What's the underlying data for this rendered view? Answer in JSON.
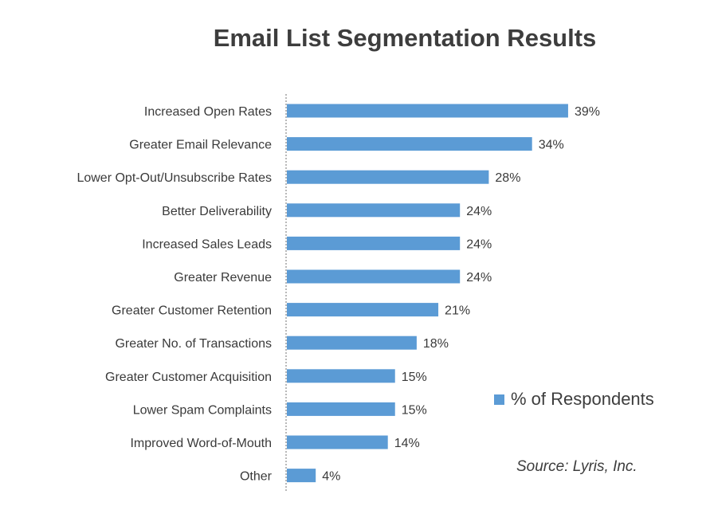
{
  "chart_data": {
    "type": "bar",
    "orientation": "horizontal",
    "title": "Email List Segmentation Results",
    "categories": [
      "Increased Open Rates",
      "Greater Email Relevance",
      "Lower Opt-Out/Unsubscribe Rates",
      "Better Deliverability",
      "Increased Sales Leads",
      "Greater Revenue",
      "Greater Customer Retention",
      "Greater No. of Transactions",
      "Greater Customer Acquisition",
      "Lower Spam Complaints",
      "Improved Word-of-Mouth",
      "Other"
    ],
    "series": [
      {
        "name": "% of Respondents",
        "values": [
          39,
          34,
          28,
          24,
          24,
          24,
          21,
          18,
          15,
          15,
          14,
          4
        ],
        "labels": [
          "39%",
          "34%",
          "28%",
          "24%",
          "24%",
          "24%",
          "21%",
          "18%",
          "15%",
          "15%",
          "14%",
          "4%"
        ],
        "color": "#5b9bd5"
      }
    ],
    "xlim": [
      0,
      40
    ],
    "grid": false,
    "legend_position": "right",
    "source": "Source: Lyris, Inc."
  }
}
